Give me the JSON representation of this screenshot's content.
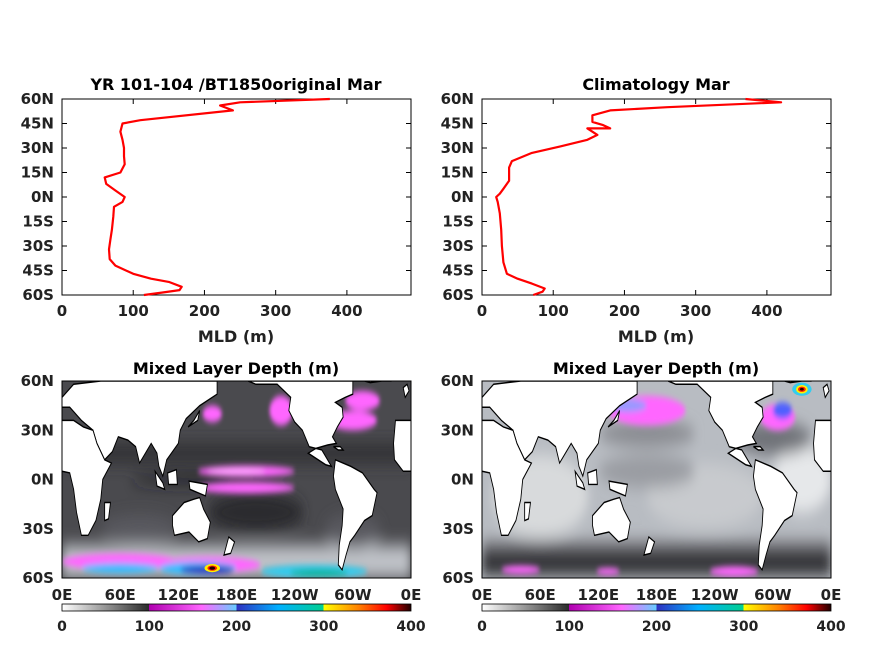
{
  "chart_data": [
    {
      "type": "line",
      "title": "YR 101-104 /BT1850original Mar",
      "xlabel": "MLD (m)",
      "ylabel": "",
      "xlim": [
        0,
        490
      ],
      "ylim": [
        -60,
        60
      ],
      "x_ticks": [
        "0",
        "100",
        "200",
        "300",
        "400"
      ],
      "y_ticks": [
        "60N",
        "45N",
        "30N",
        "15N",
        "0N",
        "15S",
        "30S",
        "45S",
        "60S"
      ],
      "series": [
        {
          "color": "#ff0000",
          "points": [
            [
              115,
              -60
            ],
            [
              140,
              -58.5
            ],
            [
              165,
              -57
            ],
            [
              168,
              -55
            ],
            [
              150,
              -52
            ],
            [
              125,
              -50
            ],
            [
              100,
              -47
            ],
            [
              75,
              -42
            ],
            [
              67,
              -38
            ],
            [
              66,
              -32
            ],
            [
              68,
              -26
            ],
            [
              70,
              -20
            ],
            [
              72,
              -12
            ],
            [
              73,
              -6
            ],
            [
              85,
              -3
            ],
            [
              88,
              0
            ],
            [
              75,
              4
            ],
            [
              62,
              8
            ],
            [
              60,
              12
            ],
            [
              82,
              15
            ],
            [
              88,
              20
            ],
            [
              87,
              25
            ],
            [
              87,
              30
            ],
            [
              85,
              35
            ],
            [
              82,
              40
            ],
            [
              85,
              45
            ],
            [
              110,
              47
            ],
            [
              240,
              53
            ],
            [
              222,
              56
            ],
            [
              250,
              58
            ],
            [
              376,
              60
            ]
          ]
        }
      ]
    },
    {
      "type": "line",
      "title": "Climatology Mar",
      "xlabel": "MLD (m)",
      "ylabel": "",
      "xlim": [
        0,
        490
      ],
      "ylim": [
        -60,
        60
      ],
      "x_ticks": [
        "0",
        "100",
        "200",
        "300",
        "400"
      ],
      "y_ticks": [
        "60N",
        "45N",
        "30N",
        "15N",
        "0N",
        "15S",
        "30S",
        "45S",
        "60S"
      ],
      "series": [
        {
          "color": "#ff0000",
          "points": [
            [
              72,
              -60
            ],
            [
              85,
              -58
            ],
            [
              88,
              -56
            ],
            [
              70,
              -53
            ],
            [
              50,
              -50
            ],
            [
              35,
              -47
            ],
            [
              30,
              -40
            ],
            [
              28,
              -30
            ],
            [
              27,
              -20
            ],
            [
              25,
              -10
            ],
            [
              22,
              -3
            ],
            [
              20,
              0
            ],
            [
              25,
              2
            ],
            [
              30,
              5
            ],
            [
              38,
              10
            ],
            [
              38,
              18
            ],
            [
              42,
              22
            ],
            [
              70,
              27
            ],
            [
              110,
              31
            ],
            [
              148,
              35
            ],
            [
              162,
              38
            ],
            [
              148,
              42
            ],
            [
              180,
              42
            ],
            [
              170,
              44
            ],
            [
              155,
              46
            ],
            [
              155,
              50
            ],
            [
              180,
              53
            ],
            [
              260,
              55
            ],
            [
              420,
              58
            ],
            [
              370,
              60
            ]
          ]
        }
      ]
    },
    {
      "type": "heatmap",
      "title": "Mixed Layer Depth (m)",
      "x_ticks": [
        "0E",
        "60E",
        "120E",
        "180E",
        "120W",
        "60W",
        "0E"
      ],
      "y_ticks": [
        "60N",
        "30N",
        "0N",
        "30S",
        "60S"
      ],
      "xlim": [
        0,
        360
      ],
      "ylim": [
        -60,
        60
      ],
      "colorbar": {
        "range": [
          0,
          400
        ],
        "ticks": [
          "0",
          "100",
          "200",
          "300",
          "400"
        ]
      }
    },
    {
      "type": "heatmap",
      "title": "Mixed Layer Depth (m)",
      "x_ticks": [
        "0E",
        "60E",
        "120E",
        "180E",
        "120W",
        "60W",
        "0E"
      ],
      "y_ticks": [
        "60N",
        "30N",
        "0N",
        "30S",
        "60S"
      ],
      "xlim": [
        0,
        360
      ],
      "ylim": [
        -60,
        60
      ],
      "colorbar": {
        "range": [
          0,
          400
        ],
        "ticks": [
          "0",
          "100",
          "200",
          "300",
          "400"
        ]
      }
    }
  ]
}
